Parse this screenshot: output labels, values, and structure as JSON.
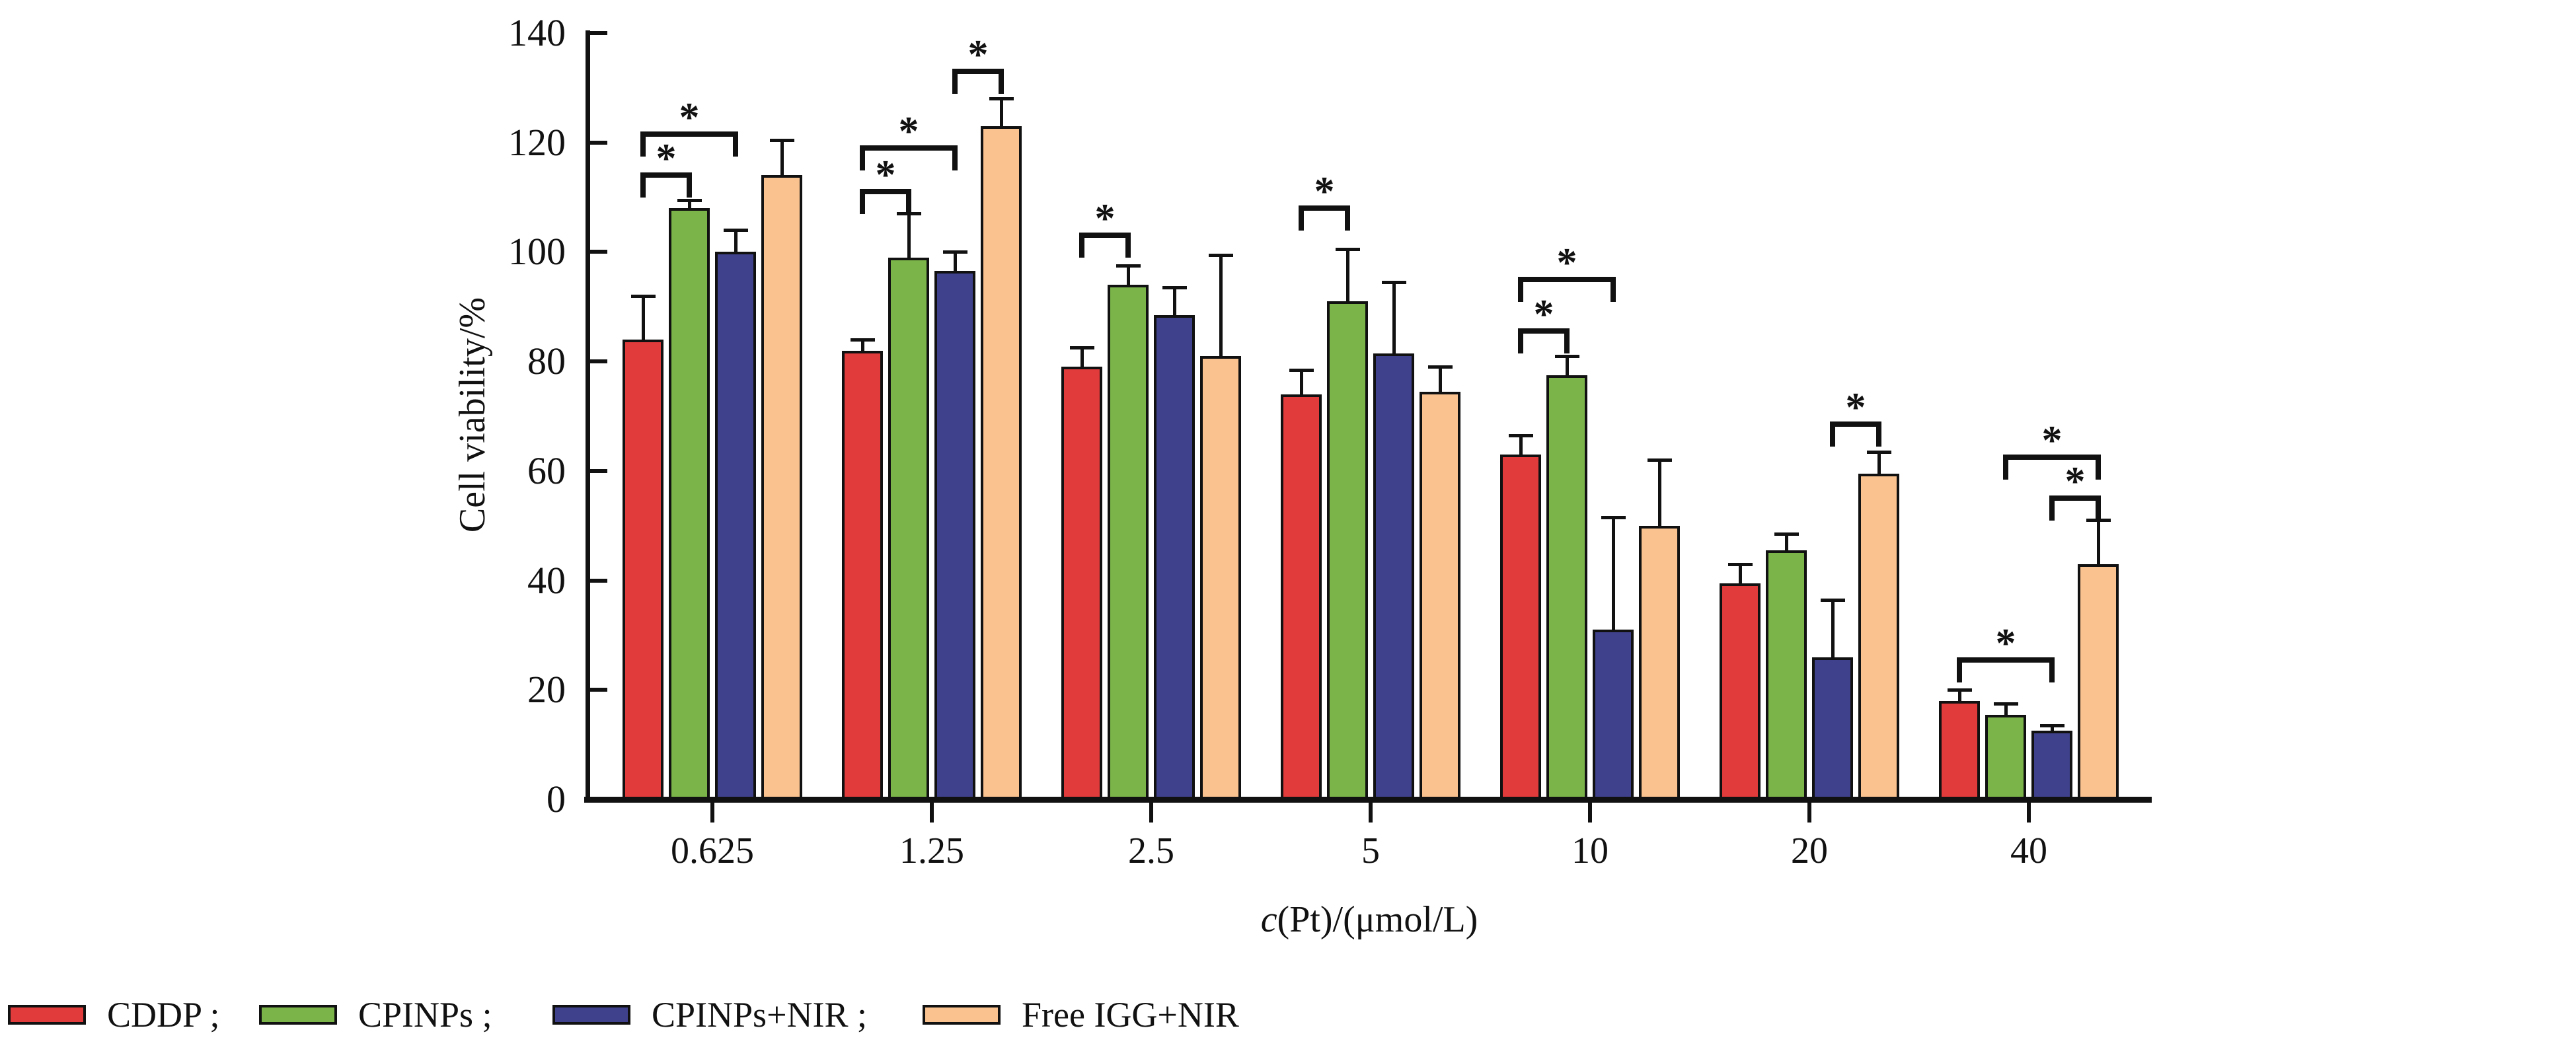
{
  "chart_data": {
    "type": "bar",
    "title": "",
    "ylabel": "Cell viability/%",
    "xlabel": "c(Pt)/(μmol/L)",
    "xlabel_italic": "c",
    "xlabel_rest": "(Pt)/(μmol/L)",
    "categories": [
      "0.625",
      "1.25",
      "2.5",
      "5",
      "10",
      "20",
      "40"
    ],
    "ylim": [
      0,
      140
    ],
    "yticks": [
      0,
      20,
      40,
      60,
      80,
      100,
      120,
      140
    ],
    "ytick_labels": [
      "0",
      "20",
      "40",
      "60",
      "80",
      "100",
      "120",
      "140"
    ],
    "grid": false,
    "legend_position": "bottom-left",
    "error_bars": "upper",
    "axis_color": "#111111",
    "series": [
      {
        "name": "CDDP",
        "legend_label": "CDDP ;",
        "color": "#E23B3B",
        "values": [
          84,
          82,
          79,
          74,
          63,
          39.5,
          18
        ],
        "errors": [
          8,
          2,
          3.5,
          4.5,
          3.5,
          3.5,
          2
        ]
      },
      {
        "name": "CPINPs",
        "legend_label": "CPINPs ;",
        "color": "#7BB54A",
        "values": [
          108,
          99,
          94,
          91,
          77.5,
          45.5,
          15.5
        ],
        "errors": [
          1.5,
          8,
          3.5,
          9.5,
          3.5,
          3,
          2
        ]
      },
      {
        "name": "CPINPs+NIR",
        "legend_label": "CPINPs+NIR ;",
        "color": "#3F418C",
        "values": [
          100,
          96.5,
          88.5,
          81.5,
          31,
          26,
          12.5
        ],
        "errors": [
          4,
          3.5,
          5,
          13,
          20.5,
          10.5,
          1
        ]
      },
      {
        "name": "Free IGG+NIR",
        "legend_label": "Free IGG+NIR",
        "color": "#F9C28F",
        "values": [
          114,
          123,
          81,
          74.5,
          50,
          59.5,
          43
        ],
        "errors": [
          6.5,
          5,
          18.5,
          4.5,
          12,
          4,
          8
        ]
      }
    ],
    "significance_brackets": [
      {
        "group": 0,
        "from": 0,
        "to": 1,
        "y": 114.5,
        "label": "*"
      },
      {
        "group": 0,
        "from": 0,
        "to": 2,
        "y": 122,
        "label": "*"
      },
      {
        "group": 1,
        "from": 0,
        "to": 1,
        "y": 111.5,
        "label": "*"
      },
      {
        "group": 1,
        "from": 0,
        "to": 2,
        "y": 119.5,
        "label": "*"
      },
      {
        "group": 1,
        "from": 2,
        "to": 3,
        "y": 133.5,
        "label": "*"
      },
      {
        "group": 2,
        "from": 0,
        "to": 1,
        "y": 103.5,
        "label": "*"
      },
      {
        "group": 3,
        "from": 0,
        "to": 1,
        "y": 108.5,
        "label": "*"
      },
      {
        "group": 4,
        "from": 0,
        "to": 1,
        "y": 86,
        "label": "*"
      },
      {
        "group": 4,
        "from": 0,
        "to": 2,
        "y": 95.5,
        "label": "*"
      },
      {
        "group": 5,
        "from": 2,
        "to": 3,
        "y": 69,
        "label": "*"
      },
      {
        "group": 6,
        "from": 0,
        "to": 2,
        "y": 26,
        "label": "*"
      },
      {
        "group": 6,
        "from": 1,
        "to": 3,
        "y": 63,
        "label": "*"
      },
      {
        "group": 6,
        "from": 2,
        "to": 3,
        "y": 55.5,
        "label": "*"
      }
    ]
  }
}
